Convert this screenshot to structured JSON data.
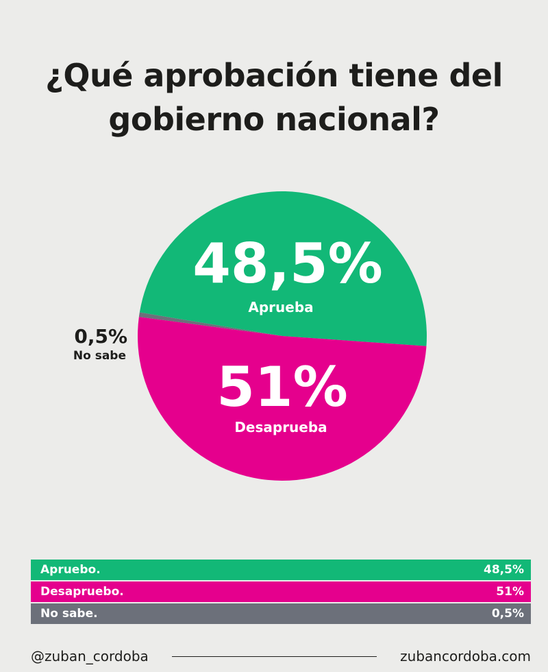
{
  "title_lines": [
    "¿Qué aprobación tiene del",
    "gobierno nacional?"
  ],
  "chart_data": {
    "type": "pie",
    "title": "¿Qué aprobación tiene del gobierno nacional?",
    "slices": [
      {
        "name": "Aprueba",
        "value": 48.5,
        "label": "48,5%",
        "color": "#12b877"
      },
      {
        "name": "No sabe",
        "value": 0.5,
        "label": "0,5%",
        "color": "#6c707a"
      },
      {
        "name": "Desaprueba",
        "value": 51,
        "label": "51%",
        "color": "#e5008d"
      }
    ]
  },
  "legend": [
    {
      "label": "Apruebo.",
      "value": "48,5%",
      "color": "#12b877"
    },
    {
      "label": "Desapruebo.",
      "value": "51%",
      "color": "#e5008d"
    },
    {
      "label": "No sabe.",
      "value": "0,5%",
      "color": "#6c707a"
    }
  ],
  "footer": {
    "handle": "@zuban_cordoba",
    "website": "zubancordoba.com"
  }
}
